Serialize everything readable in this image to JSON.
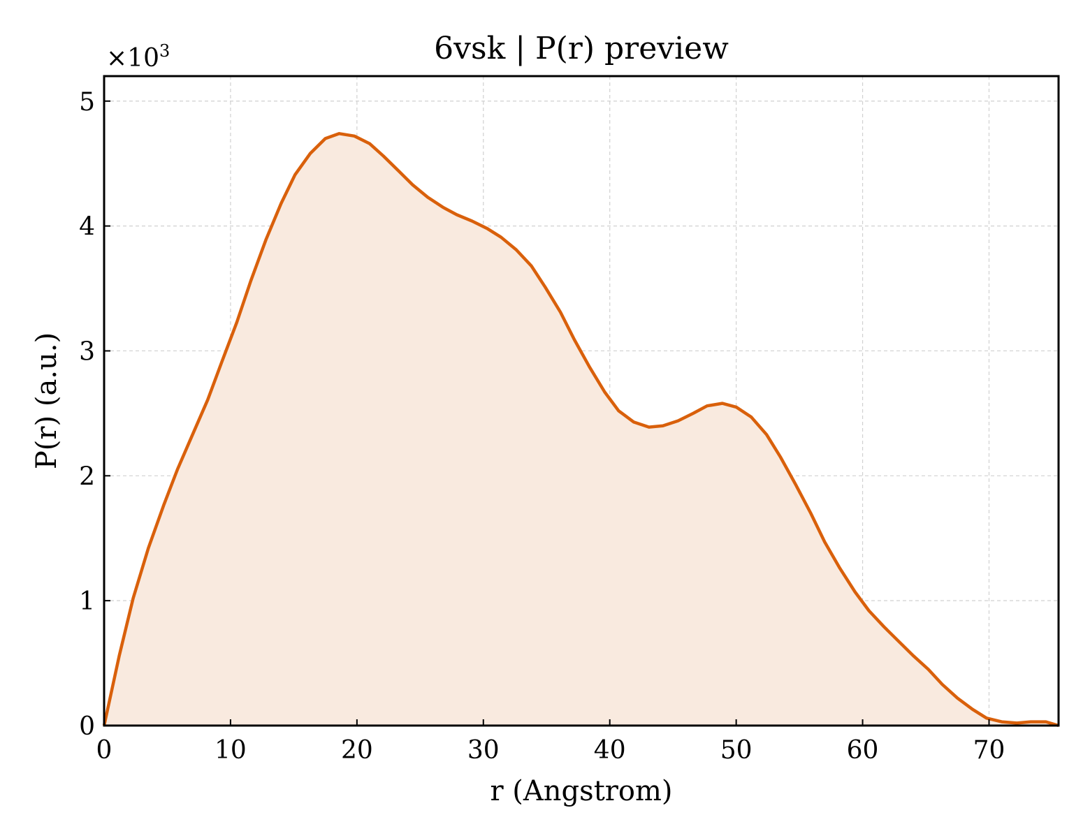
{
  "chart_data": {
    "type": "area",
    "title": "6vsk | P(r) preview",
    "xlabel": "r (Angstrom)",
    "ylabel": "P(r) (a.u.)",
    "y_scale_prefix": "×10",
    "y_scale_exponent": "3",
    "xlim": [
      0,
      75.5
    ],
    "ylim": [
      0,
      5.2
    ],
    "x_ticks": [
      0,
      10,
      20,
      30,
      40,
      50,
      60,
      70
    ],
    "y_ticks": [
      0,
      1,
      2,
      3,
      4,
      5
    ],
    "grid": true,
    "line_color": "#d9600b",
    "fill_color": "#f9eadf",
    "series": [
      {
        "x": [
          0,
          1.2,
          2.3,
          3.5,
          4.7,
          5.8,
          7.0,
          8.2,
          9.3,
          10.5,
          11.6,
          12.8,
          14.0,
          15.1,
          16.3,
          17.5,
          18.6,
          19.8,
          21.0,
          22.1,
          23.3,
          24.4,
          25.6,
          26.8,
          27.9,
          29.1,
          30.3,
          31.4,
          32.6,
          33.8,
          34.9,
          36.1,
          37.2,
          38.4,
          39.6,
          40.7,
          41.9,
          43.1,
          44.2,
          45.4,
          46.6,
          47.7,
          48.9,
          50.0,
          51.2,
          52.4,
          53.5,
          54.7,
          55.9,
          57.0,
          58.2,
          59.4,
          60.5,
          61.7,
          62.9,
          64.0,
          65.2,
          66.3,
          67.5,
          68.7,
          69.8,
          71.0,
          72.2,
          73.3,
          74.5,
          75.5
        ],
        "y": [
          0,
          0.56,
          1.02,
          1.42,
          1.76,
          2.05,
          2.33,
          2.61,
          2.91,
          3.23,
          3.56,
          3.89,
          4.18,
          4.41,
          4.58,
          4.7,
          4.74,
          4.72,
          4.66,
          4.56,
          4.44,
          4.33,
          4.23,
          4.15,
          4.09,
          4.04,
          3.98,
          3.91,
          3.81,
          3.68,
          3.51,
          3.31,
          3.09,
          2.87,
          2.67,
          2.52,
          2.43,
          2.39,
          2.4,
          2.44,
          2.5,
          2.56,
          2.58,
          2.55,
          2.47,
          2.33,
          2.15,
          1.93,
          1.7,
          1.47,
          1.26,
          1.07,
          0.92,
          0.79,
          0.67,
          0.56,
          0.45,
          0.33,
          0.22,
          0.13,
          0.06,
          0.03,
          0.02,
          0.03,
          0.03,
          0.0
        ]
      }
    ]
  }
}
